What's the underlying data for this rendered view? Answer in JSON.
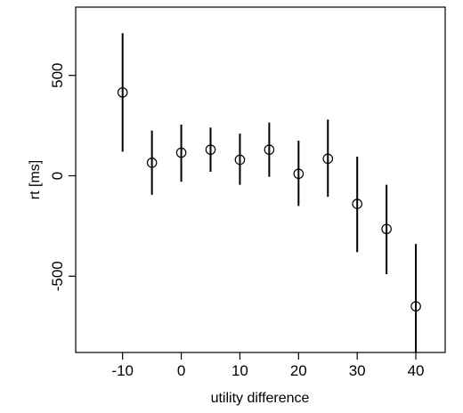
{
  "chart_data": {
    "type": "scatter",
    "title": "",
    "xlabel": "utility difference",
    "ylabel": "rt [ms]",
    "xlim": [
      -18,
      45
    ],
    "ylim": [
      -880,
      840
    ],
    "x_ticks": [
      -10,
      0,
      10,
      20,
      30,
      40
    ],
    "y_ticks": [
      -500,
      0,
      500
    ],
    "x_tick_labels": [
      "-10",
      "0",
      "10",
      "20",
      "30",
      "40"
    ],
    "y_tick_labels": [
      "-500",
      "0",
      "500"
    ],
    "grid": false,
    "series": [
      {
        "marker": "open-circle",
        "error_bars": true,
        "points": [
          {
            "x": -10,
            "y": 415,
            "lower": 120,
            "upper": 710
          },
          {
            "x": -5,
            "y": 65,
            "lower": -95,
            "upper": 225
          },
          {
            "x": 0,
            "y": 115,
            "lower": -30,
            "upper": 255
          },
          {
            "x": 5,
            "y": 130,
            "lower": 20,
            "upper": 240
          },
          {
            "x": 10,
            "y": 80,
            "lower": -45,
            "upper": 210
          },
          {
            "x": 15,
            "y": 130,
            "lower": -5,
            "upper": 265
          },
          {
            "x": 20,
            "y": 10,
            "lower": -150,
            "upper": 175
          },
          {
            "x": 25,
            "y": 85,
            "lower": -105,
            "upper": 280
          },
          {
            "x": 30,
            "y": -140,
            "lower": -380,
            "upper": 95
          },
          {
            "x": 35,
            "y": -265,
            "lower": -490,
            "upper": -45
          },
          {
            "x": 40,
            "y": -650,
            "lower": -880,
            "upper": -340
          }
        ]
      }
    ]
  }
}
